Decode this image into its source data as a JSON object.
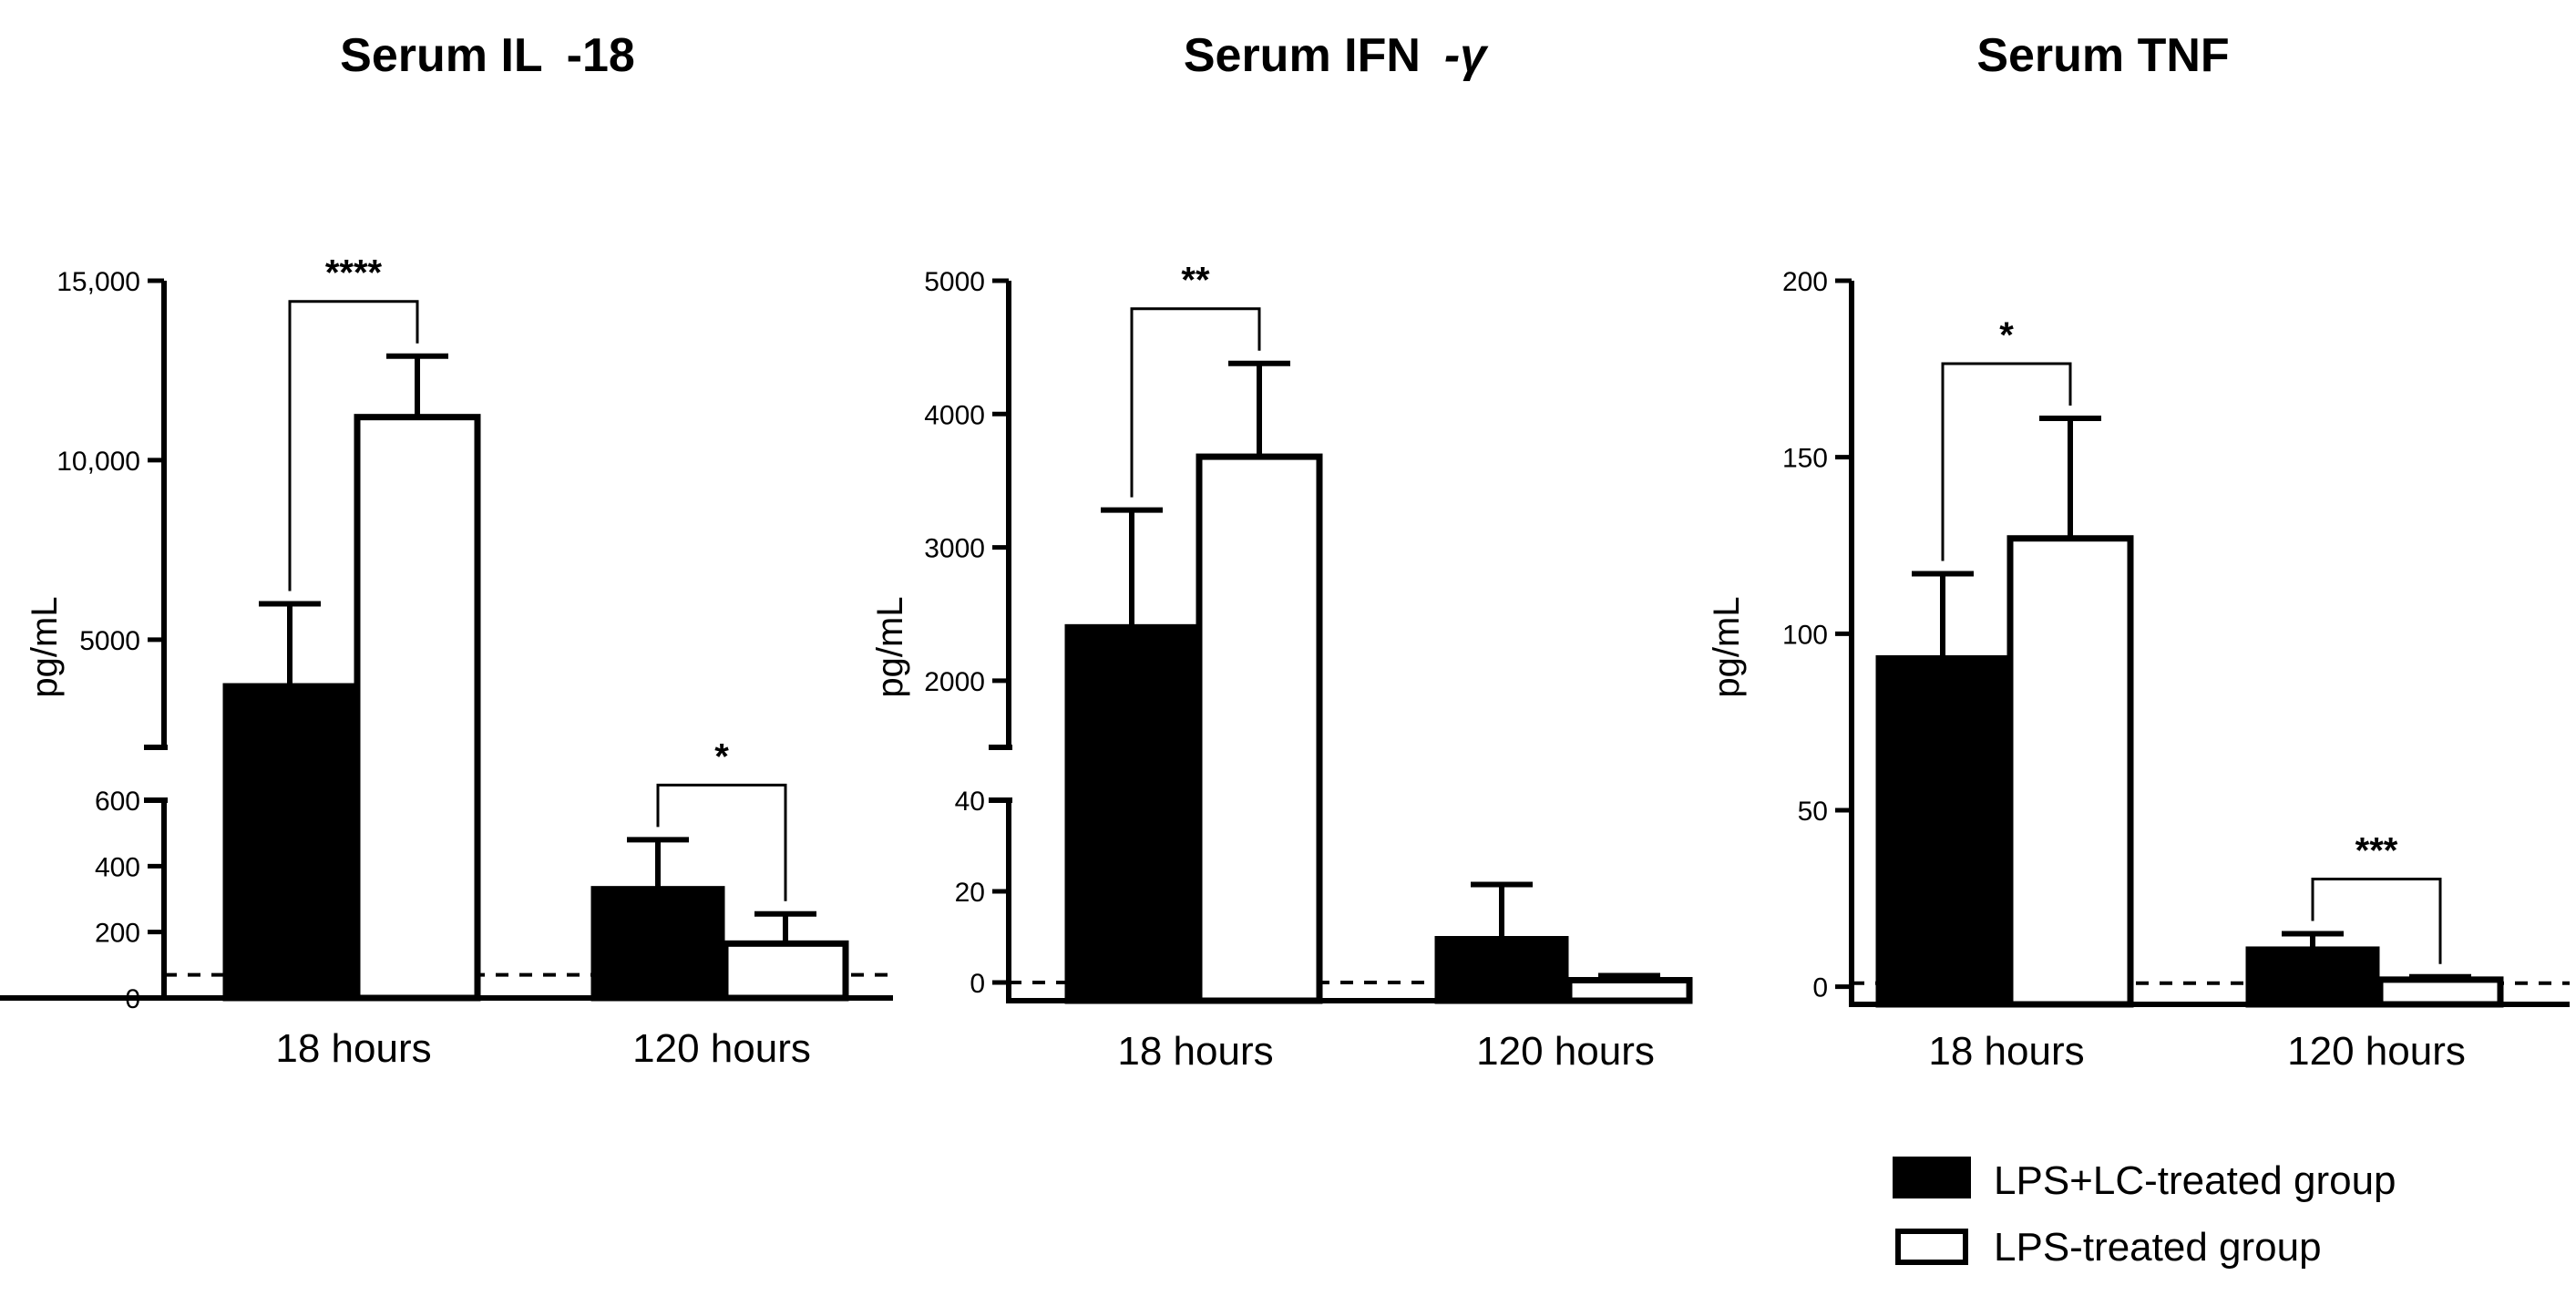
{
  "colors": {
    "axis": "#000000",
    "lps_lc": "#000000",
    "lps": "#ffffff"
  },
  "legend": {
    "items": [
      {
        "label": "LPS+LC-treated group",
        "fill": "#000000"
      },
      {
        "label": "LPS-treated group",
        "fill": "#ffffff"
      }
    ]
  },
  "chart_data": [
    {
      "type": "bar",
      "title": "Serum IL-18",
      "title_parts": [
        "Serum IL",
        "-18"
      ],
      "ylabel": "pg/mL",
      "categories": [
        "18 hours",
        "120 hours"
      ],
      "axis_break": true,
      "lower_ylim": [
        0,
        600
      ],
      "lower_ticks": [
        0,
        200,
        400,
        600
      ],
      "lower_tick_labels": [
        "0",
        "200",
        "400",
        "600"
      ],
      "upper_ylim": [
        2000,
        15000
      ],
      "upper_ticks": [
        5000,
        10000,
        15000
      ],
      "upper_tick_labels": [
        "5000",
        "10,000",
        "15,000"
      ],
      "detection_limit": 70,
      "series": [
        {
          "name": "LPS+LC-treated group",
          "values": [
            3700,
            330
          ],
          "errors": [
            2300,
            150
          ]
        },
        {
          "name": "LPS-treated group",
          "values": [
            11200,
            165
          ],
          "errors": [
            1700,
            90
          ]
        }
      ],
      "significance": [
        {
          "category": "18 hours",
          "label": "****"
        },
        {
          "category": "120 hours",
          "label": "*"
        }
      ]
    },
    {
      "type": "bar",
      "title": "Serum IFN-γ",
      "title_parts": [
        "Serum IFN",
        "-γ"
      ],
      "ylabel": "pg/mL",
      "categories": [
        "18 hours",
        "120 hours"
      ],
      "axis_break": true,
      "lower_ylim": [
        -4,
        40
      ],
      "lower_ticks": [
        0,
        20,
        40
      ],
      "lower_tick_labels": [
        "0",
        "20",
        "40"
      ],
      "upper_ylim": [
        1500,
        5000
      ],
      "upper_ticks": [
        2000,
        3000,
        4000,
        5000
      ],
      "upper_tick_labels": [
        "2000",
        "3000",
        "4000",
        "5000"
      ],
      "detection_limit": 0,
      "series": [
        {
          "name": "LPS+LC-treated group",
          "values": [
            2400,
            9.5
          ],
          "errors": [
            880,
            12
          ]
        },
        {
          "name": "LPS-treated group",
          "values": [
            3680,
            0.5
          ],
          "errors": [
            700,
            1
          ]
        }
      ],
      "significance": [
        {
          "category": "18 hours",
          "label": "**"
        }
      ]
    },
    {
      "type": "bar",
      "title": "Serum TNF",
      "title_parts": [
        "Serum TNF",
        ""
      ],
      "ylabel": "pg/mL",
      "categories": [
        "18 hours",
        "120 hours"
      ],
      "axis_break": false,
      "ylim": [
        -5,
        200
      ],
      "ticks": [
        0,
        50,
        100,
        150,
        200
      ],
      "tick_labels": [
        "0",
        "50",
        "100",
        "150",
        "200"
      ],
      "detection_limit": 1,
      "series": [
        {
          "name": "LPS+LC-treated group",
          "values": [
            93,
            10.5
          ],
          "errors": [
            24,
            4.5
          ]
        },
        {
          "name": "LPS-treated group",
          "values": [
            127,
            2
          ],
          "errors": [
            34,
            0.8
          ]
        }
      ],
      "significance": [
        {
          "category": "18 hours",
          "label": "*"
        },
        {
          "category": "120 hours",
          "label": "***"
        }
      ]
    }
  ]
}
